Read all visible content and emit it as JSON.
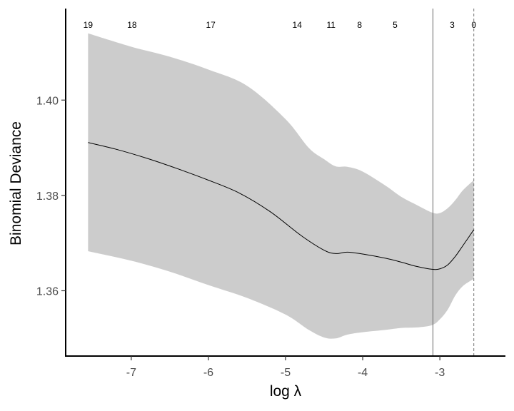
{
  "chart_data": {
    "type": "line",
    "xlabel": "log λ",
    "ylabel": "Binomial Deviance",
    "xlim": [
      -7.85,
      -2.15
    ],
    "ylim": [
      1.3463,
      1.4192
    ],
    "x_ticks": [
      -7,
      -6,
      -5,
      -4,
      -3
    ],
    "x_tick_labels": [
      "-7",
      "-6",
      "-5",
      "-4",
      "-3"
    ],
    "y_ticks": [
      1.36,
      1.38,
      1.4
    ],
    "y_tick_labels": [
      "1.36",
      "1.38",
      "1.40"
    ],
    "top_labels": {
      "x": [
        -7.56,
        -6.99,
        -5.97,
        -4.85,
        -4.41,
        -4.04,
        -3.58,
        -2.84,
        -2.56
      ],
      "labels": [
        "19",
        "18",
        "17",
        "14",
        "11",
        "8",
        "5",
        "3",
        "0"
      ]
    },
    "mean_curve": {
      "x": [
        -7.56,
        -7.2,
        -6.8,
        -6.4,
        -6.0,
        -5.6,
        -5.2,
        -4.8,
        -4.5,
        -4.35,
        -4.2,
        -4.0,
        -3.7,
        -3.5,
        -3.3,
        -3.1,
        -3.0,
        -2.9,
        -2.8,
        -2.7,
        -2.56
      ],
      "y": [
        1.3911,
        1.3897,
        1.3878,
        1.3856,
        1.3832,
        1.3805,
        1.3766,
        1.3716,
        1.3685,
        1.3678,
        1.3681,
        1.3677,
        1.3668,
        1.366,
        1.3651,
        1.3645,
        1.3646,
        1.3654,
        1.3672,
        1.3695,
        1.3728
      ]
    },
    "upper_band": {
      "x": [
        -7.56,
        -7.0,
        -6.5,
        -6.0,
        -5.5,
        -5.0,
        -4.7,
        -4.5,
        -4.35,
        -4.2,
        -4.0,
        -3.7,
        -3.5,
        -3.3,
        -3.1,
        -3.0,
        -2.9,
        -2.8,
        -2.7,
        -2.56
      ],
      "y": [
        1.414,
        1.4112,
        1.4091,
        1.4064,
        1.403,
        1.396,
        1.39,
        1.3876,
        1.3861,
        1.386,
        1.385,
        1.382,
        1.3797,
        1.378,
        1.3764,
        1.3763,
        1.3773,
        1.379,
        1.3811,
        1.3832
      ]
    },
    "lower_band": {
      "x": [
        -7.56,
        -7.0,
        -6.5,
        -6.0,
        -5.5,
        -5.0,
        -4.7,
        -4.5,
        -4.35,
        -4.2,
        -4.0,
        -3.7,
        -3.5,
        -3.3,
        -3.1,
        -3.0,
        -2.9,
        -2.8,
        -2.7,
        -2.56
      ],
      "y": [
        1.3683,
        1.3663,
        1.364,
        1.3612,
        1.3585,
        1.355,
        1.3518,
        1.3502,
        1.35,
        1.3508,
        1.3513,
        1.3518,
        1.3522,
        1.3523,
        1.3528,
        1.354,
        1.356,
        1.359,
        1.361,
        1.3625
      ]
    },
    "vertical_lines": [
      {
        "x": -3.09,
        "style": "solid"
      },
      {
        "x": -2.56,
        "style": "dashed"
      }
    ],
    "colors": {
      "band": "#cccccc",
      "line": "#000000",
      "vline_solid": "#666666",
      "vline_dashed": "#777777"
    },
    "grid": false,
    "legend": "none"
  }
}
